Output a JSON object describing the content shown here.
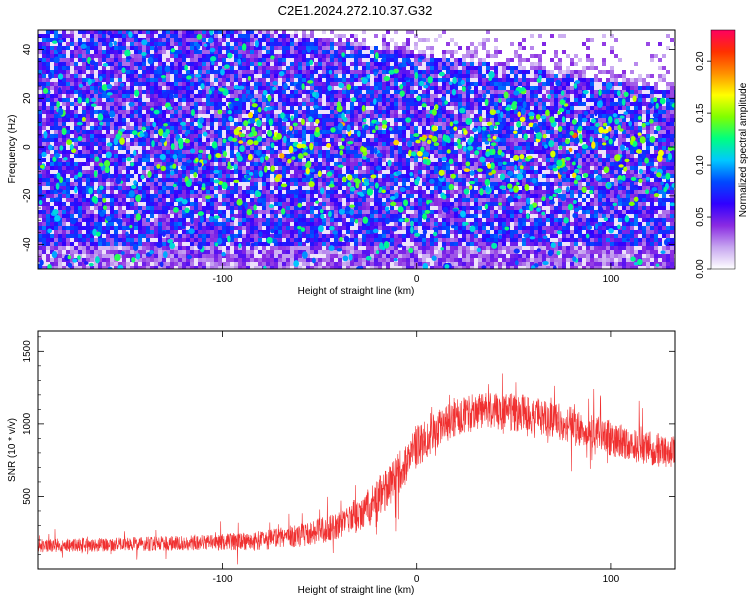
{
  "title": "C2E1.2024.272.10.37.G32",
  "chart_data": [
    {
      "type": "heatmap",
      "xlabel": "Height of straight line (km)",
      "ylabel": "Frequency (Hz)",
      "xlim": [
        -195,
        133
      ],
      "ylim": [
        -50,
        48
      ],
      "x_ticks": [
        -100,
        0,
        100
      ],
      "y_ticks": [
        -40,
        -20,
        0,
        20,
        40
      ],
      "colorbar": {
        "label": "Normalized spectral amplitude",
        "range": [
          0.0,
          0.23
        ],
        "ticks": [
          "0.00",
          "0.05",
          "0.10",
          "0.15",
          "0.20"
        ],
        "tick_values": [
          0.0,
          0.05,
          0.1,
          0.15,
          0.2
        ],
        "colors": [
          "#ffffff",
          "#c7a6f0",
          "#8a2be2",
          "#3000ff",
          "#0048ff",
          "#00c8ff",
          "#00ff80",
          "#80ff00",
          "#ffff00",
          "#ff9000",
          "#ff3000",
          "#ff0060"
        ]
      },
      "blank_region": {
        "description_values": "upper-right low-amplitude zone above a boundary rising from about (-80 km, 48 Hz) to (133 km, 24 Hz)"
      }
    },
    {
      "type": "line",
      "xlabel": "Height of straight line (km)",
      "ylabel": "SNR (10 * v/v)",
      "xlim": [
        -195,
        133
      ],
      "ylim": [
        0,
        1640
      ],
      "x_ticks": [
        -100,
        0,
        100
      ],
      "y_ticks": [
        500,
        1000,
        1500
      ],
      "series": [
        {
          "color": "#f03030",
          "envelope_x": [
            -195,
            -150,
            -100,
            -80,
            -60,
            -40,
            -30,
            -20,
            -10,
            0,
            10,
            20,
            30,
            40,
            50,
            60,
            70,
            80,
            90,
            100,
            110,
            120,
            133
          ],
          "baseline": [
            160,
            170,
            185,
            200,
            230,
            300,
            380,
            480,
            650,
            830,
            960,
            1040,
            1080,
            1090,
            1080,
            1060,
            1030,
            990,
            950,
            900,
            860,
            830,
            800
          ],
          "spread": [
            90,
            95,
            110,
            140,
            160,
            200,
            250,
            300,
            300,
            280,
            260,
            250,
            260,
            260,
            260,
            260,
            250,
            250,
            240,
            240,
            240,
            240,
            240
          ]
        }
      ]
    }
  ]
}
